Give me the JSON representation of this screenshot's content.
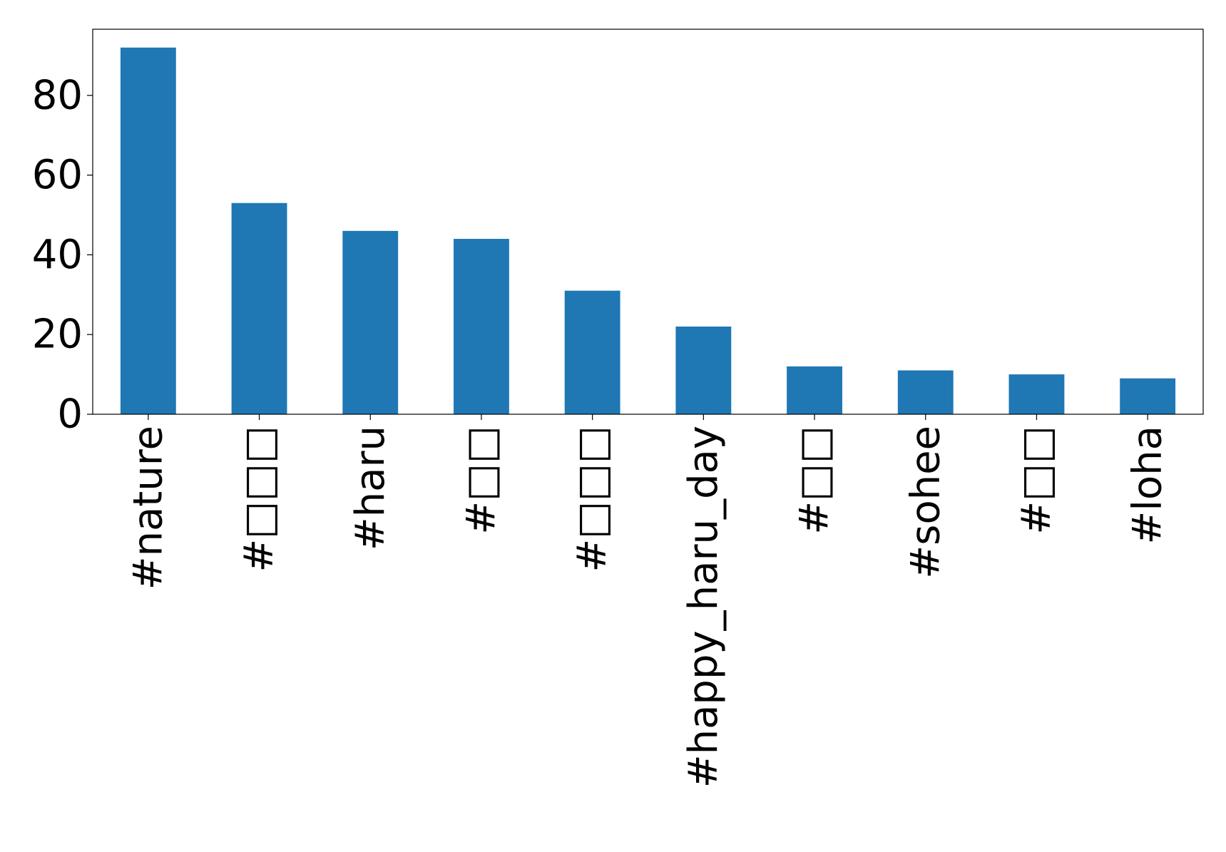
{
  "chart_data": {
    "type": "bar",
    "categories": [
      "#nature",
      "#□□□",
      "#haru",
      "#□□",
      "#□□□",
      "#happy_haru_day",
      "#□□",
      "#sohee",
      "#□□",
      "#loha"
    ],
    "values": [
      92,
      53,
      46,
      44,
      31,
      22,
      12,
      11,
      10,
      9
    ],
    "title": "",
    "xlabel": "",
    "ylabel": "",
    "ylim": [
      0,
      96.6
    ],
    "yticks": [
      "0",
      "20",
      "40",
      "60",
      "80"
    ],
    "grid": false,
    "bar_color": "#1f77b4",
    "x_label_rotation": "vertical"
  }
}
